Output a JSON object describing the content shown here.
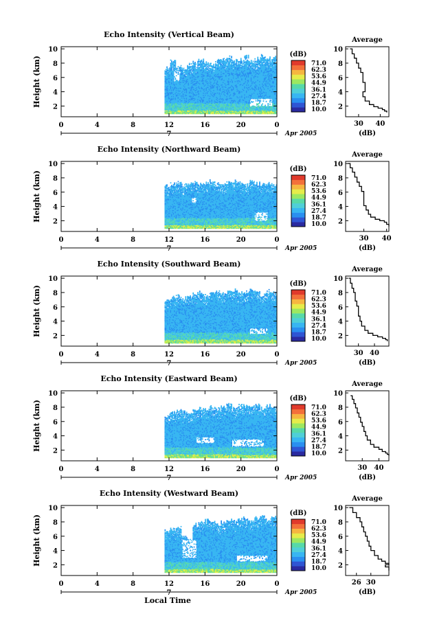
{
  "palette": [
    "#2a2aa0",
    "#2f55d4",
    "#2a8ff0",
    "#38b6f2",
    "#4fcfd8",
    "#57d9a8",
    "#9de860",
    "#e6ec4a",
    "#f6b640",
    "#f3703a",
    "#e03a2c"
  ],
  "colorbar": {
    "unit": "(dB)",
    "ticks": [
      "71.0",
      "62.3",
      "53.6",
      "44.9",
      "36.1",
      "27.4",
      "18.7",
      "10.0"
    ]
  },
  "avg_title": "Average",
  "avg_xlabel": "(dB)",
  "footer_xlabel": "Local Time",
  "chart_data": [
    {
      "type": "heatmap",
      "title": "Echo Intensity (Vertical Beam)",
      "ylabel": "Height (km)",
      "yticks": [
        "2",
        "4",
        "6",
        "8",
        "10"
      ],
      "xticks": [
        "0",
        "4",
        "8",
        "12",
        "16",
        "20",
        "0"
      ],
      "date_label": "7",
      "month_label": "Apr 2005",
      "ylim": [
        0.5,
        10.3
      ],
      "xlim": [
        0,
        24
      ],
      "data_start_hour": 11.5,
      "cloud_top_km": [
        7.3,
        8.4,
        7.6,
        7.4,
        7.8,
        8.2,
        8.5,
        8.0,
        7.9,
        8.3,
        8.6,
        8.8,
        8.4,
        8.5,
        8.9,
        8.2,
        8.6,
        9.0,
        8.7,
        8.8
      ],
      "gaps": [
        {
          "h0": 12.5,
          "h1": 13.2,
          "z0": 5.5,
          "z1": 7.0
        },
        {
          "h0": 21.0,
          "h1": 23.5,
          "z0": 2.0,
          "z1": 3.0
        }
      ],
      "profile": {
        "type": "line",
        "title": "Average",
        "xlabel": "(dB)",
        "xticks": [
          "30",
          "40"
        ],
        "yticks": [
          "2",
          "4",
          "6",
          "8",
          "10"
        ],
        "xlim": [
          24,
          44
        ],
        "ylim": [
          0.5,
          10.3
        ],
        "x": [
          26,
          27,
          28,
          29,
          30,
          31,
          32,
          32,
          33,
          33,
          32,
          33,
          35,
          37,
          39,
          41,
          42,
          43
        ],
        "y": [
          10.0,
          9.3,
          8.7,
          8.0,
          7.3,
          6.7,
          6.0,
          5.3,
          4.6,
          4.0,
          3.3,
          2.7,
          2.2,
          1.9,
          1.7,
          1.5,
          1.3,
          1.1
        ]
      }
    },
    {
      "type": "heatmap",
      "title": "Echo Intensity (Northward Beam)",
      "ylabel": "Height (km)",
      "yticks": [
        "2",
        "4",
        "6",
        "8",
        "10"
      ],
      "xticks": [
        "0",
        "4",
        "8",
        "12",
        "16",
        "20",
        "0"
      ],
      "date_label": "7",
      "month_label": "Apr 2005",
      "ylim": [
        0.5,
        10.3
      ],
      "xlim": [
        0,
        24
      ],
      "data_start_hour": 11.5,
      "cloud_top_km": [
        6.9,
        7.1,
        7.3,
        7.0,
        7.2,
        7.4,
        7.1,
        7.3,
        7.5,
        7.2,
        7.0,
        7.4,
        7.6,
        7.3,
        7.1,
        7.5,
        7.2,
        7.0,
        7.3,
        7.1
      ],
      "gaps": [
        {
          "h0": 21.5,
          "h1": 23.0,
          "z0": 2.0,
          "z1": 3.2
        },
        {
          "h0": 14.5,
          "h1": 15.0,
          "z0": 4.5,
          "z1": 5.2
        }
      ],
      "profile": {
        "type": "line",
        "title": "Average",
        "xlabel": "(dB)",
        "xticks": [
          "30",
          "40"
        ],
        "yticks": [
          "2",
          "4",
          "6",
          "8",
          "10"
        ],
        "xlim": [
          22,
          41
        ],
        "ylim": [
          0.5,
          10.3
        ],
        "x": [
          23,
          24,
          25,
          26,
          27,
          28,
          29,
          30,
          30,
          30,
          31,
          32,
          33,
          35,
          37,
          39,
          40,
          41
        ],
        "y": [
          10.0,
          9.4,
          8.8,
          8.1,
          7.4,
          6.8,
          6.1,
          5.5,
          4.8,
          4.1,
          3.5,
          2.9,
          2.5,
          2.2,
          2.0,
          1.8,
          1.5,
          1.2
        ]
      }
    },
    {
      "type": "heatmap",
      "title": "Echo Intensity (Southward Beam)",
      "ylabel": "Height (km)",
      "yticks": [
        "2",
        "4",
        "6",
        "8",
        "10"
      ],
      "xticks": [
        "0",
        "4",
        "8",
        "12",
        "16",
        "20",
        "0"
      ],
      "date_label": "7",
      "month_label": "Apr 2005",
      "ylim": [
        0.5,
        10.3
      ],
      "xlim": [
        0,
        24
      ],
      "data_start_hour": 11.5,
      "cloud_top_km": [
        7.0,
        7.3,
        7.5,
        7.2,
        7.4,
        7.8,
        8.0,
        7.6,
        7.9,
        8.2,
        7.8,
        8.0,
        8.3,
        7.9,
        8.1,
        8.4,
        8.0,
        7.7,
        8.2,
        7.9
      ],
      "gaps": [
        {
          "h0": 21.0,
          "h1": 23.0,
          "z0": 2.2,
          "z1": 3.0
        }
      ],
      "profile": {
        "type": "line",
        "title": "Average",
        "xlabel": "(dB)",
        "xticks": [
          "30",
          "40"
        ],
        "yticks": [
          "2",
          "4",
          "6",
          "8",
          "10"
        ],
        "xlim": [
          22,
          49
        ],
        "ylim": [
          0.5,
          10.3
        ],
        "x": [
          24,
          25,
          26,
          27,
          28,
          28,
          29,
          30,
          30,
          31,
          32,
          34,
          36,
          39,
          42,
          45,
          47,
          48
        ],
        "y": [
          10.0,
          9.3,
          8.6,
          8.0,
          7.4,
          6.8,
          6.1,
          5.4,
          4.7,
          4.0,
          3.3,
          2.7,
          2.3,
          2.0,
          1.8,
          1.6,
          1.4,
          1.2
        ]
      }
    },
    {
      "type": "heatmap",
      "title": "Echo Intensity (Eastward Beam)",
      "ylabel": "Height (km)",
      "yticks": [
        "2",
        "4",
        "6",
        "8",
        "10"
      ],
      "xticks": [
        "0",
        "4",
        "8",
        "12",
        "16",
        "20",
        "0"
      ],
      "date_label": "7",
      "month_label": "Apr 2005",
      "ylim": [
        0.5,
        10.3
      ],
      "xlim": [
        0,
        24
      ],
      "data_start_hour": 11.5,
      "cloud_top_km": [
        6.8,
        7.2,
        7.6,
        7.3,
        7.0,
        7.5,
        7.8,
        7.6,
        8.0,
        7.7,
        8.1,
        8.3,
        7.9,
        8.2,
        8.5,
        8.1,
        8.4,
        7.8,
        8.2,
        8.0
      ],
      "gaps": [
        {
          "h0": 19.0,
          "h1": 22.5,
          "z0": 2.5,
          "z1": 3.5
        },
        {
          "h0": 15.0,
          "h1": 17.0,
          "z0": 3.0,
          "z1": 3.8
        }
      ],
      "profile": {
        "type": "line",
        "title": "Average",
        "xlabel": "(dB)",
        "xticks": [
          "30",
          "40"
        ],
        "yticks": [
          "2",
          "4",
          "6",
          "8",
          "10"
        ],
        "xlim": [
          20,
          46
        ],
        "ylim": [
          0.5,
          10.3
        ],
        "x": [
          23,
          24,
          25,
          26,
          27,
          28,
          29,
          30,
          31,
          32,
          33,
          35,
          37,
          40,
          42,
          44,
          45,
          46
        ],
        "y": [
          9.6,
          9.1,
          8.5,
          7.9,
          7.2,
          6.6,
          5.9,
          5.3,
          4.6,
          4.0,
          3.4,
          2.8,
          2.4,
          2.1,
          1.8,
          1.6,
          1.4,
          1.2
        ]
      }
    },
    {
      "type": "heatmap",
      "title": "Echo Intensity (Westward Beam)",
      "ylabel": "Height (km)",
      "yticks": [
        "2",
        "4",
        "6",
        "8",
        "10"
      ],
      "xticks": [
        "0",
        "4",
        "8",
        "12",
        "16",
        "20",
        "0"
      ],
      "date_label": "7",
      "month_label": "Apr 2005",
      "ylim": [
        0.5,
        10.3
      ],
      "xlim": [
        0,
        24
      ],
      "data_start_hour": 11.5,
      "cloud_top_km": [
        6.8,
        7.0,
        7.2,
        5.8,
        5.5,
        7.6,
        8.0,
        8.2,
        7.9,
        7.7,
        8.0,
        8.3,
        8.1,
        8.4,
        8.6,
        8.2,
        8.5,
        8.7,
        8.4,
        8.8
      ],
      "gaps": [
        {
          "h0": 13.5,
          "h1": 15.0,
          "z0": 3.0,
          "z1": 5.5
        },
        {
          "h0": 19.5,
          "h1": 23.0,
          "z0": 2.5,
          "z1": 3.3
        }
      ],
      "profile": {
        "type": "line",
        "title": "Average",
        "xlabel": "(dB)",
        "xticks": [
          "26",
          "30"
        ],
        "yticks": [
          "2",
          "4",
          "6",
          "8",
          "10"
        ],
        "xlim": [
          23,
          35
        ],
        "ylim": [
          0.5,
          10.3
        ],
        "x": [
          24,
          25,
          26,
          27,
          27.5,
          28,
          28.5,
          29,
          29.5,
          30,
          31,
          32,
          33,
          34,
          35,
          34,
          35,
          35
        ],
        "y": [
          10.0,
          9.3,
          8.6,
          8.0,
          7.3,
          6.6,
          6.0,
          5.3,
          4.6,
          4.0,
          3.3,
          2.8,
          2.5,
          2.2,
          2.0,
          1.7,
          1.5,
          1.2
        ]
      }
    }
  ]
}
